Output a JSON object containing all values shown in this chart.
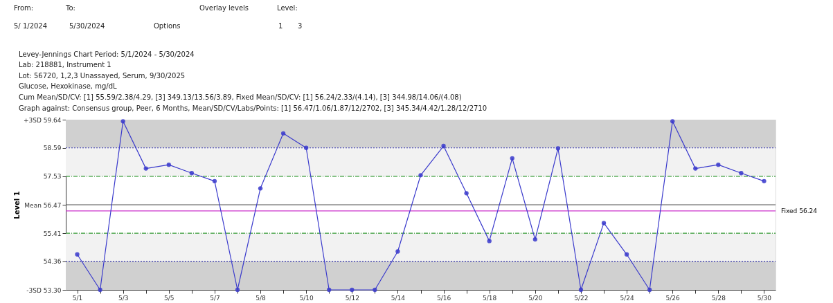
{
  "chart_data": {
    "type": "line",
    "annotations": [
      "From:",
      "To:",
      "5/ 1/2024",
      "5/30/2024",
      "Options",
      "Overlay levels",
      "Level:",
      "1",
      "3",
      "Levey-Jennings Chart    Period: 5/1/2024 - 5/30/2024",
      "Lab: 218881, Instrument 1",
      "Lot: 56720, 1,2,3 Unassayed, Serum, 9/30/2025",
      "Glucose, Hexokinase, mg/dL",
      "Cum Mean/SD/CV: [1] 55.59/2.38/4.29, [3] 349.13/13.56/3.89,  Fixed Mean/SD/CV: [1] 56.24/2.33/(4.14), [3] 344.98/14.06/(4.08)",
      "Graph against: Consensus group, Peer, 6 Months, Mean/SD/CV/Labs/Points: [1] 56.47/1.06/1.87/12/2702, [3] 345.34/4.42/1.28/12/2710"
    ],
    "ylabel": "Level 1",
    "categories": [
      "5/1",
      null,
      "5/3",
      null,
      "5/5",
      null,
      "5/7",
      null,
      "5/8",
      null,
      "5/10",
      null,
      "5/12",
      null,
      "5/14",
      null,
      "5/16",
      null,
      "5/18",
      null,
      "5/20",
      null,
      "5/22",
      null,
      "5/24",
      null,
      "5/26",
      null,
      "5/28",
      null,
      "5/30"
    ],
    "series": [
      {
        "color": "#3a3acc",
        "values": [
          54.62,
          53.3,
          59.58,
          57.82,
          57.96,
          57.65,
          57.35,
          53.3,
          57.08,
          59.13,
          58.59,
          53.3,
          53.3,
          53.3,
          54.73,
          57.57,
          58.66,
          56.9,
          55.12,
          58.2,
          55.18,
          58.57,
          53.3,
          55.79,
          54.62,
          53.3,
          59.58,
          57.82,
          57.96,
          57.65,
          57.35
        ]
      }
    ],
    "ylim": [
      53.3,
      59.64
    ],
    "yticks": [
      {
        "value": 53.3,
        "label": "-3SD 53.30"
      },
      54.36,
      55.41,
      {
        "value": 56.47,
        "label": "Mean 56.47"
      },
      57.53,
      58.59,
      {
        "value": 59.64,
        "label": "+3SD 59.64"
      }
    ],
    "bands": [
      {
        "axis": "y",
        "from": 58.59,
        "to": 59.64,
        "color": "#d0d0d0"
      },
      {
        "axis": "y",
        "from": 57.53,
        "to": 58.59,
        "color": "#f2f2f2"
      },
      {
        "axis": "y",
        "from": 54.36,
        "to": 55.41,
        "color": "#f2f2f2"
      },
      {
        "axis": "y",
        "from": 53.3,
        "to": 54.36,
        "color": "#d0d0d0"
      }
    ],
    "ref_lines": [
      {
        "axis": "y",
        "value": 58.59,
        "color": "#3333aa",
        "line_style": "dotted"
      },
      {
        "axis": "y",
        "value": 57.53,
        "color": "#339933",
        "line_style": "dashed"
      },
      {
        "axis": "y",
        "value": 56.47,
        "color": "#505050",
        "line_style": "solid"
      },
      {
        "axis": "y",
        "value": 56.24,
        "color": "#cc33cc",
        "line_style": "solid",
        "label": "Fixed 56.24"
      },
      {
        "axis": "y",
        "value": 55.41,
        "color": "#339933",
        "line_style": "dashed"
      },
      {
        "axis": "y",
        "value": 54.36,
        "color": "#3333aa",
        "line_style": "dotted"
      }
    ],
    "grid": false,
    "marker": "circle",
    "line_style": "solid"
  }
}
